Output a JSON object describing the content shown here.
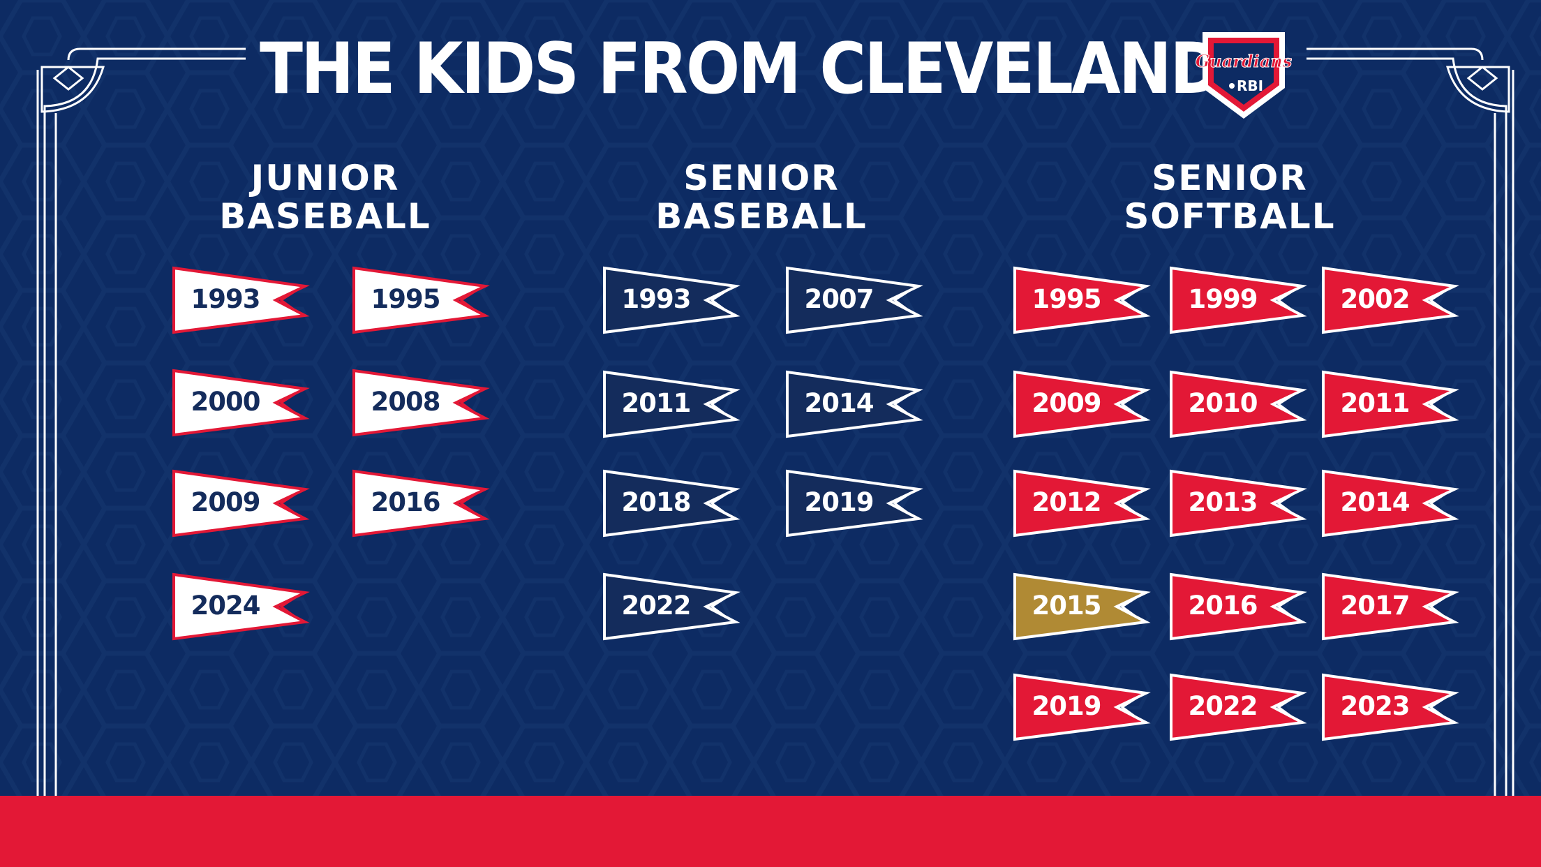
{
  "title": "THE KIDS FROM CLEVELAND",
  "logo": {
    "wordmark": "Guardians",
    "sub": "RBI"
  },
  "colors": {
    "background": "#0d2b63",
    "accent_red": "#e31836",
    "white": "#ffffff",
    "navy_text": "#142c5c",
    "gold": "#b08a34"
  },
  "sections": [
    {
      "title_line1": "JUNIOR",
      "title_line2": "BASEBALL",
      "style": "white",
      "years": [
        "1993",
        "1995",
        "2000",
        "2008",
        "2009",
        "2016",
        "2024"
      ]
    },
    {
      "title_line1": "SENIOR",
      "title_line2": "BASEBALL",
      "style": "navy",
      "years": [
        "1993",
        "2007",
        "2011",
        "2014",
        "2018",
        "2019",
        "2022"
      ]
    },
    {
      "title_line1": "SENIOR",
      "title_line2": "SOFTBALL",
      "style": "red",
      "gold_years": [
        "2015"
      ],
      "years": [
        "1995",
        "1999",
        "2002",
        "2009",
        "2010",
        "2011",
        "2012",
        "2013",
        "2014",
        "2015",
        "2016",
        "2017",
        "2019",
        "2022",
        "2023"
      ]
    }
  ]
}
